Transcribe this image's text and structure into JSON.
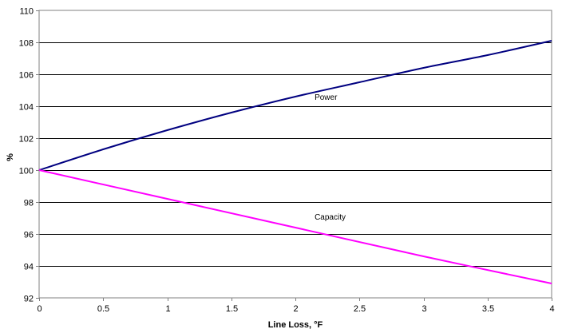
{
  "chart_data": {
    "type": "line",
    "title": "",
    "xlabel": "Line Loss, °F",
    "ylabel": "%",
    "xlim": [
      0,
      4
    ],
    "ylim": [
      92,
      110
    ],
    "x_ticks": [
      "0",
      "0.5",
      "1",
      "1.5",
      "2",
      "2.5",
      "3",
      "3.5",
      "4"
    ],
    "y_ticks": [
      "92",
      "94",
      "96",
      "98",
      "100",
      "102",
      "104",
      "106",
      "108",
      "110"
    ],
    "grid": "horizontal",
    "legend": "none",
    "series": [
      {
        "name": "Power",
        "color": "#000080",
        "x": [
          0,
          0.5,
          1,
          1.5,
          2,
          2.5,
          3,
          3.5,
          4
        ],
        "y": [
          100,
          101.3,
          102.5,
          103.6,
          104.6,
          105.5,
          106.4,
          107.2,
          108.1
        ]
      },
      {
        "name": "Capacity",
        "color": "#ff00ff",
        "x": [
          0,
          1,
          2,
          3,
          4
        ],
        "y": [
          100,
          98.2,
          96.4,
          94.6,
          92.9
        ]
      }
    ],
    "annotations": [
      {
        "text": "Power",
        "x": 2.15,
        "y": 104.4
      },
      {
        "text": "Capacity",
        "x": 2.15,
        "y": 96.9
      }
    ]
  }
}
